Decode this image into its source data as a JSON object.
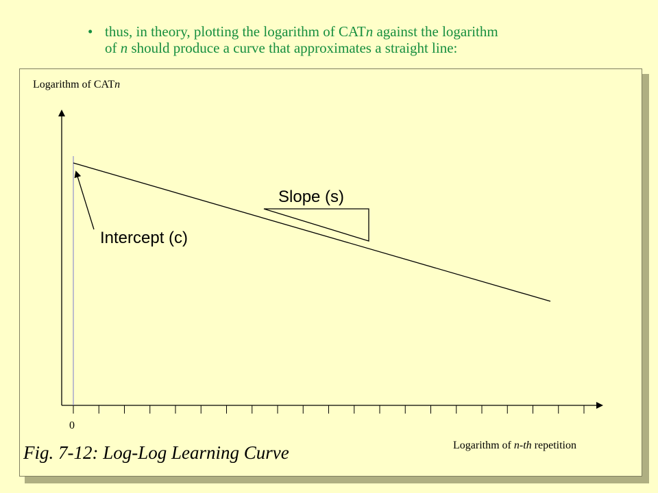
{
  "bullet": {
    "symbol": "•",
    "line1": {
      "pre": "thus, in theory, plotting the logarithm of CAT",
      "it": "n",
      "post": " against the logarithm"
    },
    "line2": {
      "pre": "of ",
      "it": "n",
      "post": " should produce a curve that approximates a straight line:"
    }
  },
  "diagram": {
    "y_axis_label": {
      "pre": "Logarithm of CAT",
      "it": "n"
    },
    "x_axis_label": {
      "pre": "Logarithm of ",
      "it1": "n",
      "mid": "-",
      "it2": "th",
      "post": " repetition"
    },
    "origin_label": "0",
    "slope_label": "Slope (s)",
    "intercept_label": "Intercept (c)",
    "caption": "Fig. 7-12:  Log-Log Learning Curve",
    "x_tick_count": 21
  },
  "colors": {
    "background": "#FFFFC9",
    "bullet_text": "#168E3E",
    "panel_shadow": "#AFAF82",
    "ink": "#000000",
    "guide_line": "#7A7ACF"
  }
}
